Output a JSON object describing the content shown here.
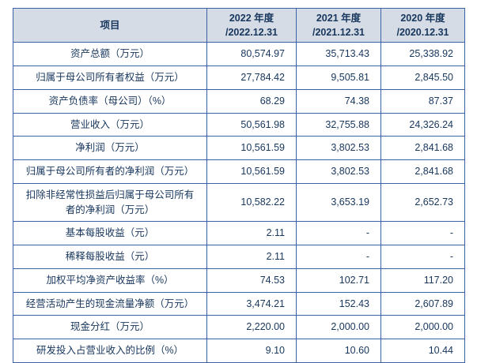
{
  "colors": {
    "border": "#3a62a7",
    "header_bg": "#d6dce5",
    "text": "#17365d",
    "background": "#ffffff"
  },
  "table": {
    "columns": [
      {
        "line1": "项目",
        "line2": ""
      },
      {
        "line1": "2022 年度",
        "line2": "/2022.12.31"
      },
      {
        "line1": "2021 年度",
        "line2": "/2021.12.31"
      },
      {
        "line1": "2020 年度",
        "line2": "/2020.12.31"
      }
    ],
    "rows": [
      {
        "label": "资产总额（万元）",
        "values": [
          "80,574.97",
          "35,713.43",
          "25,338.92"
        ]
      },
      {
        "label": "归属于母公司所有者权益（万元）",
        "values": [
          "27,784.42",
          "9,505.81",
          "2,845.50"
        ]
      },
      {
        "label": "资产负债率（母公司）（%）",
        "values": [
          "68.29",
          "74.38",
          "87.37"
        ]
      },
      {
        "label": "营业收入（万元）",
        "values": [
          "50,561.98",
          "32,755.88",
          "24,326.24"
        ]
      },
      {
        "label": "净利润（万元）",
        "values": [
          "10,561.59",
          "3,802.53",
          "2,841.68"
        ]
      },
      {
        "label": "归属于母公司所有者的净利润（万元）",
        "values": [
          "10,561.59",
          "3,802.53",
          "2,841.68"
        ]
      },
      {
        "label": "扣除非经常性损益后归属于母公司所有者的净利润（万元）",
        "values": [
          "10,582.22",
          "3,653.19",
          "2,652.73"
        ]
      },
      {
        "label": "基本每股收益（元）",
        "values": [
          "2.11",
          "-",
          "-"
        ]
      },
      {
        "label": "稀释每股收益（元）",
        "values": [
          "2.11",
          "-",
          "-"
        ]
      },
      {
        "label": "加权平均净资产收益率（%）",
        "values": [
          "74.53",
          "102.71",
          "117.20"
        ]
      },
      {
        "label": "经营活动产生的现金流量净额（万元）",
        "values": [
          "3,474.21",
          "152.43",
          "2,607.89"
        ]
      },
      {
        "label": "现金分红（万元）",
        "values": [
          "2,220.00",
          "2,000.00",
          "2,000.00"
        ]
      },
      {
        "label": "研发投入占营业收入的比例（%）",
        "values": [
          "9.10",
          "10.60",
          "10.44"
        ]
      }
    ]
  }
}
